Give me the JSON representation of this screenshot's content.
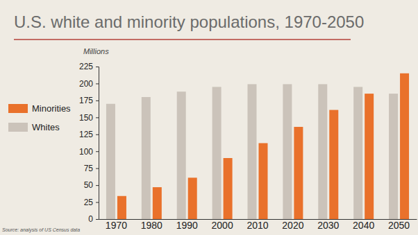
{
  "chart_data": {
    "type": "bar",
    "title": "U.S. white and minority populations, 1970-2050",
    "y_label": "Millions",
    "source": "Source: analysis of US Census data",
    "categories": [
      "1970",
      "1980",
      "1990",
      "2000",
      "2010",
      "2020",
      "2030",
      "2040",
      "2050"
    ],
    "series": [
      {
        "name": "Minorities",
        "color": "#e9712b",
        "values": [
          34,
          47,
          61,
          90,
          112,
          136,
          161,
          185,
          215
        ]
      },
      {
        "name": "Whites",
        "color": "#cbc3ba",
        "values": [
          170,
          180,
          188,
          195,
          199,
          199,
          199,
          195,
          185
        ]
      }
    ],
    "ylim": [
      0,
      225
    ],
    "yticks": [
      0,
      25,
      50,
      75,
      100,
      125,
      150,
      175,
      200,
      225
    ],
    "grid": false,
    "legend": "left"
  }
}
